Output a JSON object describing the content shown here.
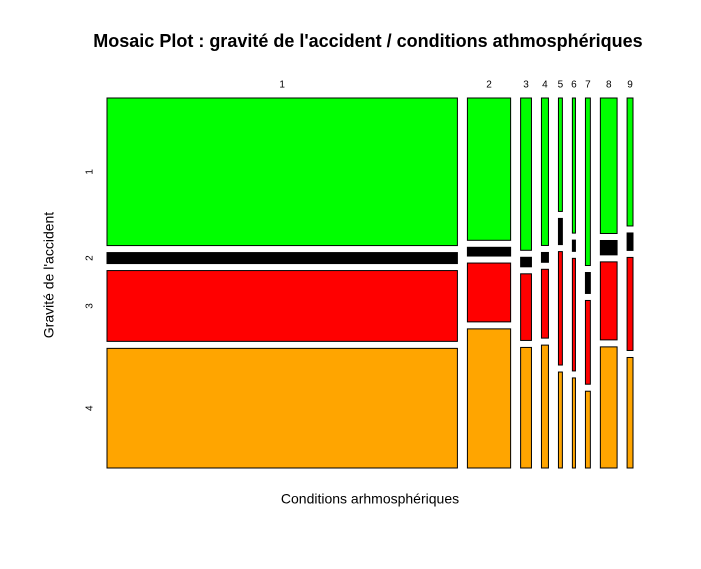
{
  "chart_data": {
    "type": "mosaic",
    "title": "Mosaic Plot : gravité de l'accident / conditions athmosphériques",
    "x_label": "Conditions arhmosphériques",
    "y_label": "Gravité de l'accident",
    "categories": [
      "1",
      "2",
      "3",
      "4",
      "5",
      "6",
      "7",
      "8",
      "9"
    ],
    "series": [
      {
        "name": "1",
        "color": "#00ff00",
        "values": [
          1505,
          179,
          48,
          30,
          13,
          12,
          24,
          66,
          22
        ]
      },
      {
        "name": "2",
        "color": "#000000",
        "values": [
          112,
          11,
          3,
          2,
          3,
          1,
          3,
          7,
          3
        ]
      },
      {
        "name": "3",
        "color": "#ff0000",
        "values": [
          722,
          74,
          21,
          14,
          13,
          10,
          12,
          38,
          16
        ]
      },
      {
        "name": "4",
        "color": "#ffa500",
        "values": [
          1220,
          175,
          38,
          25,
          11,
          8,
          11,
          59,
          19
        ]
      }
    ]
  }
}
